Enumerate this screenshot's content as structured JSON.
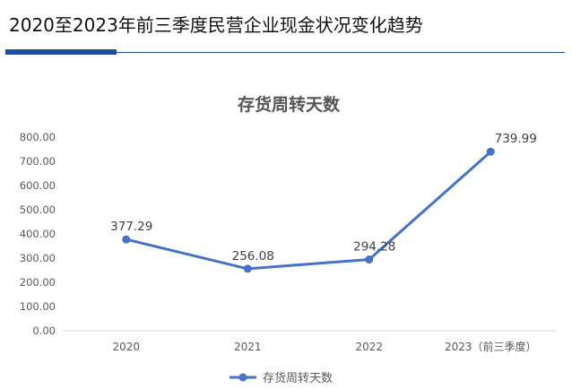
{
  "header": {
    "title": "2020至2023年前三季度民营企业现金状况变化趋势"
  },
  "chart_data": {
    "type": "line",
    "title": "存货周转天数",
    "categories": [
      "2020",
      "2021",
      "2022",
      "2023（前三季度）"
    ],
    "series": [
      {
        "name": "存货周转天数",
        "values": [
          377.29,
          256.08,
          294.28,
          739.99
        ],
        "labels": [
          "377.29",
          "256.08",
          "294.28",
          "739.99"
        ],
        "color": "#4472c4"
      }
    ],
    "ylim": [
      0,
      800
    ],
    "yticks": [
      0,
      100,
      200,
      300,
      400,
      500,
      600,
      700,
      800
    ],
    "ytick_labels": [
      "0.00",
      "100.00",
      "200.00",
      "300.00",
      "400.00",
      "500.00",
      "600.00",
      "700.00",
      "800.00"
    ],
    "grid": false,
    "legend_position": "bottom"
  }
}
